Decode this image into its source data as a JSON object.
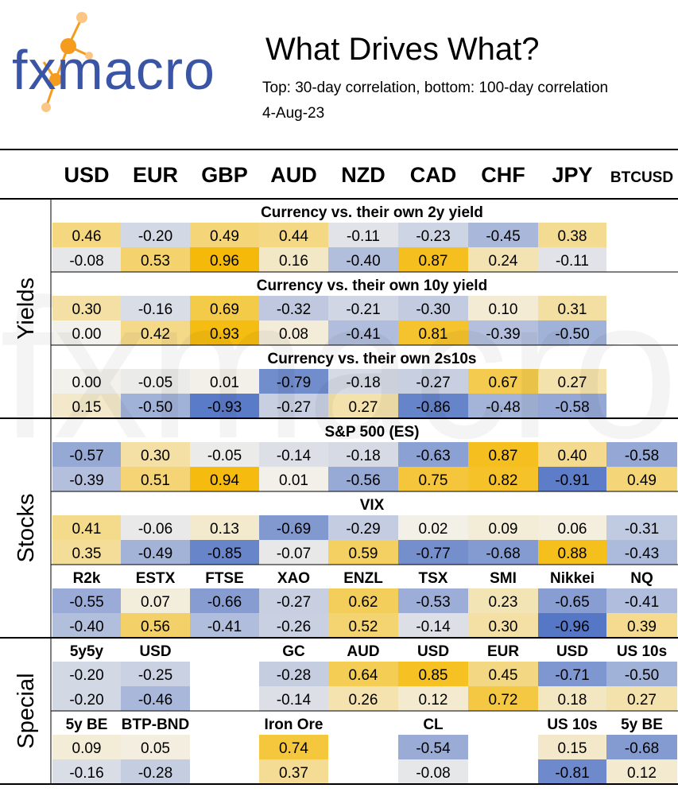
{
  "logo_text": "fxmacro",
  "watermark_text": "fxmacro",
  "header": {
    "title": "What Drives What?",
    "subtitle": "Top: 30-day correlation, bottom: 100-day correlation",
    "date": "4-Aug-23"
  },
  "colors": {
    "positive": "#f5b800",
    "negative": "#4f72c4",
    "neutral": "#f3f1ec",
    "logo_text": "#3b55a6",
    "logo_accent": "#f59b1d"
  },
  "chart_data": {
    "type": "heatmap",
    "columns": [
      "USD",
      "EUR",
      "GBP",
      "AUD",
      "NZD",
      "CAD",
      "CHF",
      "JPY",
      "BTCUSD"
    ],
    "row_legend": [
      "30-day correlation",
      "100-day correlation"
    ],
    "groups": [
      {
        "name": "Yields",
        "blocks": [
          {
            "title": "Currency vs. their own 2y yield",
            "top": [
              0.46,
              -0.2,
              0.49,
              0.44,
              -0.11,
              -0.23,
              -0.45,
              0.38,
              null
            ],
            "bottom": [
              -0.08,
              0.53,
              0.96,
              0.16,
              -0.4,
              0.87,
              0.24,
              -0.11,
              null
            ]
          },
          {
            "title": "Currency vs. their own 10y yield",
            "top": [
              0.3,
              -0.16,
              0.69,
              -0.32,
              -0.21,
              -0.3,
              0.1,
              0.31,
              null
            ],
            "bottom": [
              0.0,
              0.42,
              0.93,
              0.08,
              -0.41,
              0.81,
              -0.39,
              -0.5,
              null
            ]
          },
          {
            "title": "Currency vs. their own 2s10s",
            "top": [
              0.0,
              -0.05,
              0.01,
              -0.79,
              -0.18,
              -0.27,
              0.67,
              0.27,
              null
            ],
            "bottom": [
              0.15,
              -0.5,
              -0.93,
              -0.27,
              0.27,
              -0.86,
              -0.48,
              -0.58,
              null
            ]
          }
        ]
      },
      {
        "name": "Stocks",
        "blocks": [
          {
            "title": "S&P 500 (ES)",
            "top": [
              -0.57,
              0.3,
              -0.05,
              -0.14,
              -0.18,
              -0.63,
              0.87,
              0.4,
              -0.58
            ],
            "bottom": [
              -0.39,
              0.51,
              0.94,
              0.01,
              -0.56,
              0.75,
              0.82,
              -0.91,
              0.49
            ]
          },
          {
            "title": "VIX",
            "top": [
              0.41,
              -0.06,
              0.13,
              -0.69,
              -0.29,
              0.02,
              0.09,
              0.06,
              -0.31
            ],
            "bottom": [
              0.35,
              -0.49,
              -0.85,
              -0.07,
              0.59,
              -0.77,
              -0.68,
              0.88,
              -0.43
            ]
          },
          {
            "labels": [
              "R2k",
              "ESTX",
              "FTSE",
              "XAO",
              "ENZL",
              "TSX",
              "SMI",
              "Nikkei",
              "NQ"
            ],
            "top": [
              -0.55,
              0.07,
              -0.66,
              -0.27,
              0.62,
              -0.53,
              0.23,
              -0.65,
              -0.41
            ],
            "bottom": [
              -0.4,
              0.56,
              -0.41,
              -0.26,
              0.52,
              -0.14,
              0.3,
              -0.96,
              0.39
            ]
          }
        ]
      },
      {
        "name": "Special",
        "blocks": [
          {
            "labels": [
              "5y5y",
              "USD",
              "",
              "GC",
              "AUD",
              "USD",
              "EUR",
              "USD",
              "US 10s"
            ],
            "top": [
              -0.2,
              -0.25,
              null,
              -0.28,
              0.64,
              0.85,
              0.45,
              -0.71,
              -0.5
            ],
            "bottom": [
              -0.2,
              -0.46,
              null,
              -0.14,
              0.26,
              0.12,
              0.72,
              0.18,
              0.27
            ]
          },
          {
            "labels": [
              "5y BE",
              "BTP-BND",
              "",
              "Iron Ore",
              "",
              "CL",
              "",
              "US 10s",
              "5y BE"
            ],
            "top": [
              0.09,
              0.05,
              null,
              0.74,
              null,
              -0.54,
              null,
              0.15,
              -0.68
            ],
            "bottom": [
              -0.16,
              -0.28,
              null,
              0.37,
              null,
              -0.08,
              null,
              -0.81,
              0.12
            ]
          }
        ]
      }
    ]
  }
}
